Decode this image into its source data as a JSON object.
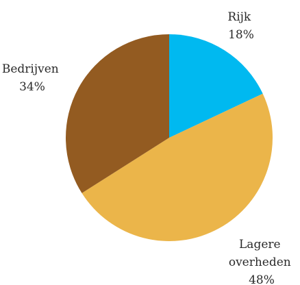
{
  "chart_data": {
    "type": "pie",
    "title": "",
    "start_angle_deg": 0,
    "direction": "clockwise",
    "slices": [
      {
        "label_lines": [
          "Rijk",
          "18%"
        ],
        "value": 18,
        "color": "#00B9F0"
      },
      {
        "label_lines": [
          "Lagere",
          "overheden",
          "48%"
        ],
        "value": 48,
        "color": "#EBB54A"
      },
      {
        "label_lines": [
          "Bedrijven",
          "34%"
        ],
        "value": 34,
        "color": "#935B21"
      }
    ]
  }
}
